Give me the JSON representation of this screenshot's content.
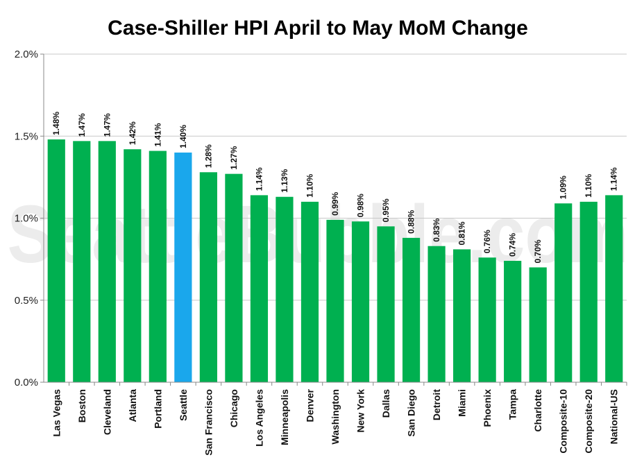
{
  "chart_data": {
    "type": "bar",
    "title": "Case-Shiller HPI April to May MoM Change",
    "watermark": "SeattleBubble.com",
    "categories": [
      "Las Vegas",
      "Boston",
      "Cleveland",
      "Atlanta",
      "Portland",
      "Seattle",
      "San Francisco",
      "Chicago",
      "Los Angeles",
      "Minneapolis",
      "Denver",
      "Washington",
      "New York",
      "Dallas",
      "San Diego",
      "Detroit",
      "Miami",
      "Phoenix",
      "Tampa",
      "Charlotte",
      "Composite-10",
      "Composite-20",
      "National-US"
    ],
    "values": [
      1.48,
      1.47,
      1.47,
      1.42,
      1.41,
      1.4,
      1.28,
      1.27,
      1.14,
      1.13,
      1.1,
      0.99,
      0.98,
      0.95,
      0.88,
      0.83,
      0.81,
      0.76,
      0.74,
      0.7,
      1.09,
      1.1,
      1.14
    ],
    "data_labels": [
      "1.48%",
      "1.47%",
      "1.47%",
      "1.42%",
      "1.41%",
      "1.40%",
      "1.28%",
      "1.27%",
      "1.14%",
      "1.13%",
      "1.10%",
      "0.99%",
      "0.98%",
      "0.95%",
      "0.88%",
      "0.83%",
      "0.81%",
      "0.76%",
      "0.74%",
      "0.70%",
      "1.09%",
      "1.10%",
      "1.14%"
    ],
    "highlight": "Seattle",
    "colors": {
      "bar": "#00b050",
      "highlight": "#1aa7ec"
    },
    "ylim": [
      0,
      2.0
    ],
    "yticks": [
      0,
      0.5,
      1.0,
      1.5,
      2.0
    ],
    "ytick_labels": [
      "0.0%",
      "0.5%",
      "1.0%",
      "1.5%",
      "2.0%"
    ],
    "xlabel": "",
    "ylabel": "",
    "grid": true,
    "legend": false
  }
}
